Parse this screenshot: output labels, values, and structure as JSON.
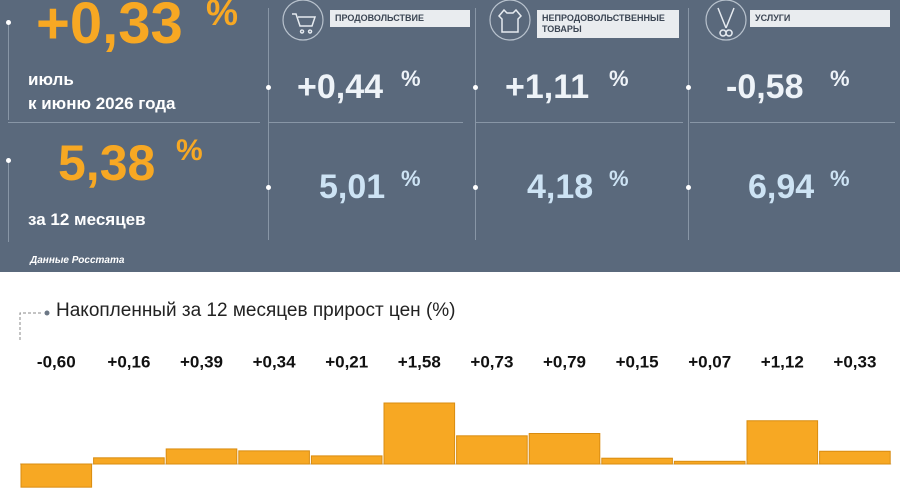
{
  "headline": {
    "value": "+0,33",
    "unit": "%",
    "period": [
      "июль",
      "к июню 2026 года"
    ]
  },
  "annual": {
    "value": "5,38",
    "unit": "%",
    "period": "за 12 месяцев"
  },
  "groups": [
    {
      "label": "ПРОДОВОЛЬСТВИЕ",
      "monthly": {
        "value": "+0,44",
        "unit": "%"
      },
      "annual": {
        "value": "5,01",
        "unit": "%"
      }
    },
    {
      "label": "НЕПРОДОВОЛЬСТВЕННЫЕ ТОВАРЫ",
      "monthly": {
        "value": "+1,11",
        "unit": "%"
      },
      "annual": {
        "value": "4,18",
        "unit": "%"
      }
    },
    {
      "label": "УСЛУГИ",
      "monthly": {
        "value": "-0,58",
        "unit": "%"
      },
      "annual": {
        "value": "6,94",
        "unit": "%"
      }
    }
  ],
  "source": "Данные Росстата",
  "chart_data": {
    "type": "bar",
    "title": "Накопленный за 12 месяцев прирост цен (%)",
    "values": [
      -0.6,
      0.16,
      0.39,
      0.34,
      0.21,
      1.58,
      0.73,
      0.79,
      0.15,
      0.07,
      1.12,
      0.33
    ],
    "value_labels": [
      "-0,60",
      "+0,16",
      "+0,39",
      "+0,34",
      "+0,21",
      "+1,58",
      "+0,73",
      "+0,79",
      "+0,15",
      "+0,07",
      "+1,12",
      "+0,33"
    ],
    "color": "#f7a823"
  }
}
